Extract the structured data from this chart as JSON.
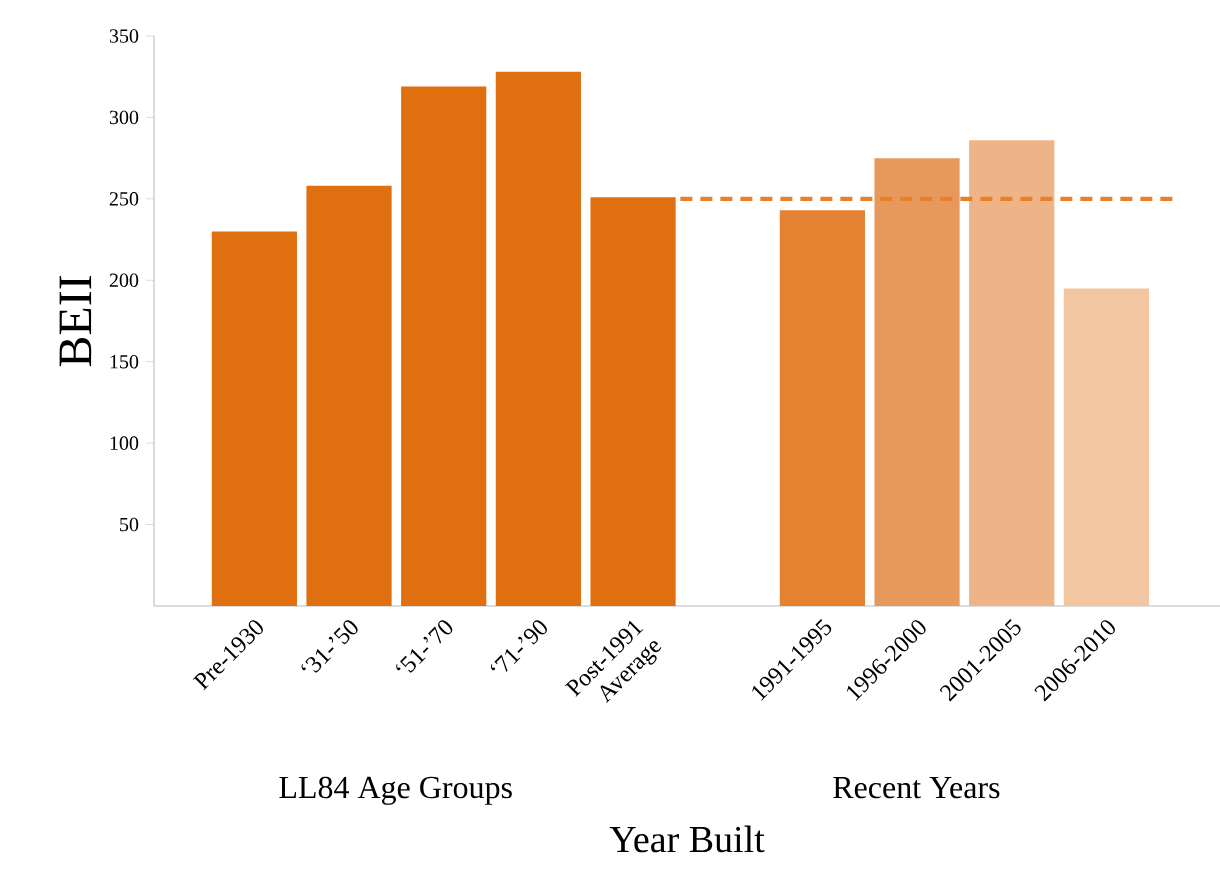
{
  "chart_data": {
    "type": "bar",
    "categories": [
      "Pre-1930",
      "‘31-’50",
      "‘51-’70",
      "‘71-’90",
      "Post-1991 Average",
      null,
      "1991-1995",
      "1996-2000",
      "2001-2005",
      "2006-2010"
    ],
    "values": [
      230,
      258,
      319,
      328,
      251,
      null,
      243,
      275,
      286,
      195
    ],
    "colors": [
      "#e06f10",
      "#e06f10",
      "#e06f10",
      "#e06f10",
      "#e06f10",
      "#ffffff",
      "#e48232",
      "#e7985c",
      "#efb388",
      "#f3c6a2"
    ],
    "ylabel": "BEII",
    "xlabel": "Year Built",
    "ylim": [
      0,
      350
    ],
    "yticks": [
      50,
      100,
      150,
      200,
      250,
      300,
      350
    ],
    "ref_lines": [
      {
        "axis": "y",
        "value": 250,
        "color": "#e8802a",
        "line_style": "dashed"
      }
    ],
    "annotations": [
      "LL84 Age Groups",
      "Recent Years"
    ],
    "grid": false
  }
}
